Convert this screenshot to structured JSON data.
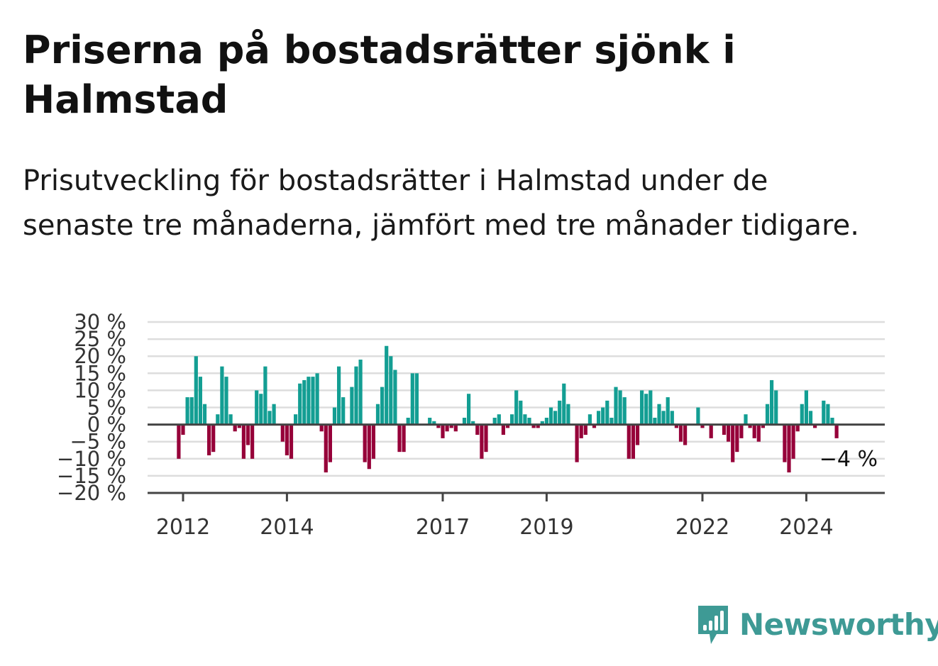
{
  "title": "Priserna på bostadsrätter sjönk i Halmstad",
  "subtitle": "Prisutveckling för bostadsrätter i Halmstad under de senaste tre månaderna, jämfört med tre månader tidigare.",
  "logo": {
    "text": "Newsworthy",
    "color": "#3e9a95",
    "icon": "bar-chart-speech-bubble-icon"
  },
  "colors": {
    "positive": "#139e93",
    "negative": "#960039",
    "grid": "#dddddd",
    "axis": "#444444"
  },
  "chart_data": {
    "type": "bar",
    "title": "",
    "xlabel": "",
    "ylabel": "",
    "ylim": [
      -20,
      30
    ],
    "y_ticks": [
      30,
      25,
      20,
      15,
      10,
      5,
      0,
      -5,
      -10,
      -15,
      -20
    ],
    "y_tick_labels": [
      "30 %",
      "25 %",
      "20 %",
      "15 %",
      "10 %",
      "5 %",
      "0 %",
      "−5 %",
      "−10 %",
      "−15 %",
      "−20 %"
    ],
    "x_tick_labels": [
      "2012",
      "2014",
      "2017",
      "2019",
      "2022",
      "2024"
    ],
    "x_tick_month_index": [
      1,
      25,
      61,
      85,
      121,
      145
    ],
    "start_month": "2011-12",
    "grid": true,
    "last_value_label": "−4 %",
    "values": [
      -10,
      -3,
      8,
      8,
      20,
      14,
      6,
      -9,
      -8,
      3,
      17,
      14,
      3,
      -2,
      -1,
      -10,
      -6,
      -10,
      10,
      9,
      17,
      4,
      6,
      0,
      -5,
      -9,
      -10,
      3,
      12,
      13,
      14,
      14,
      15,
      -2,
      -14,
      -11,
      5,
      17,
      8,
      0,
      11,
      17,
      19,
      -11,
      -13,
      -10,
      6,
      11,
      23,
      20,
      16,
      -8,
      -8,
      2,
      15,
      15,
      0,
      0,
      2,
      1,
      -1,
      -4,
      -2,
      -1,
      -2,
      0,
      2,
      9,
      1,
      -3,
      -10,
      -8,
      0,
      2,
      3,
      -3,
      -1,
      3,
      10,
      7,
      3,
      2,
      -1,
      -1,
      1,
      2,
      5,
      4,
      7,
      12,
      6,
      0,
      -11,
      -4,
      -3,
      3,
      -1,
      4,
      5,
      7,
      2,
      11,
      10,
      8,
      -10,
      -10,
      -6,
      10,
      9,
      10,
      2,
      6,
      4,
      8,
      4,
      -1,
      -5,
      -6,
      0,
      0,
      5,
      -1,
      0,
      -4,
      0,
      0,
      -3,
      -5,
      -11,
      -8,
      -4,
      3,
      -1,
      -4,
      -5,
      -1,
      6,
      13,
      10,
      0,
      -11,
      -14,
      -10,
      -2,
      6,
      10,
      4,
      -1,
      0,
      7,
      6,
      2,
      -4
    ]
  }
}
